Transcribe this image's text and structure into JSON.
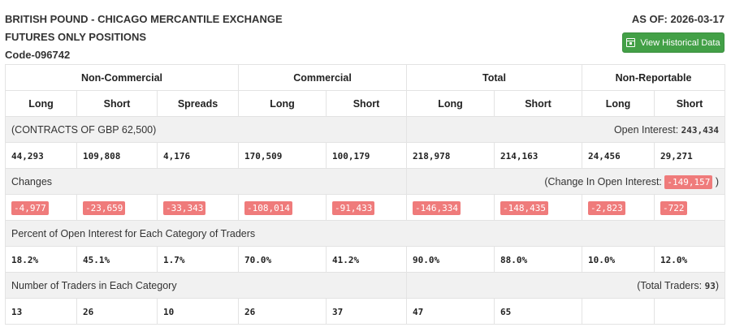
{
  "header": {
    "title_line1": "BRITISH POUND - CHICAGO MERCANTILE EXCHANGE",
    "title_line2": "FUTURES ONLY POSITIONS",
    "code": "Code-096742",
    "as_of_label": "AS OF:",
    "as_of_date": "2026-03-17",
    "history_button": "View Historical Data"
  },
  "groups": [
    "Non-Commercial",
    "Commercial",
    "Total",
    "Non-Reportable"
  ],
  "columns": [
    "Long",
    "Short",
    "Spreads",
    "Long",
    "Short",
    "Long",
    "Short",
    "Long",
    "Short"
  ],
  "contracts": {
    "label": "(CONTRACTS OF GBP 62,500)",
    "oi_label": "Open Interest:",
    "oi_value": "243,434",
    "values": [
      "44,293",
      "109,808",
      "4,176",
      "170,509",
      "100,179",
      "218,978",
      "214,163",
      "24,456",
      "29,271"
    ]
  },
  "changes": {
    "label": "Changes",
    "change_label": "(Change In Open Interest:",
    "change_value": "-149,157",
    "change_close": ")",
    "values": [
      "-4,977",
      "-23,659",
      "-33,343",
      "-108,014",
      "-91,433",
      "-146,334",
      "-148,435",
      "-2,823",
      "-722"
    ]
  },
  "percent": {
    "label": "Percent of Open Interest for Each Category of Traders",
    "values": [
      "18.2%",
      "45.1%",
      "1.7%",
      "70.0%",
      "41.2%",
      "90.0%",
      "88.0%",
      "10.0%",
      "12.0%"
    ]
  },
  "traders": {
    "label": "Number of Traders in Each Category",
    "total_label": "(Total Traders:",
    "total_value": "93",
    "total_close": ")",
    "values": [
      "13",
      "26",
      "10",
      "26",
      "37",
      "47",
      "65",
      "",
      ""
    ]
  }
}
